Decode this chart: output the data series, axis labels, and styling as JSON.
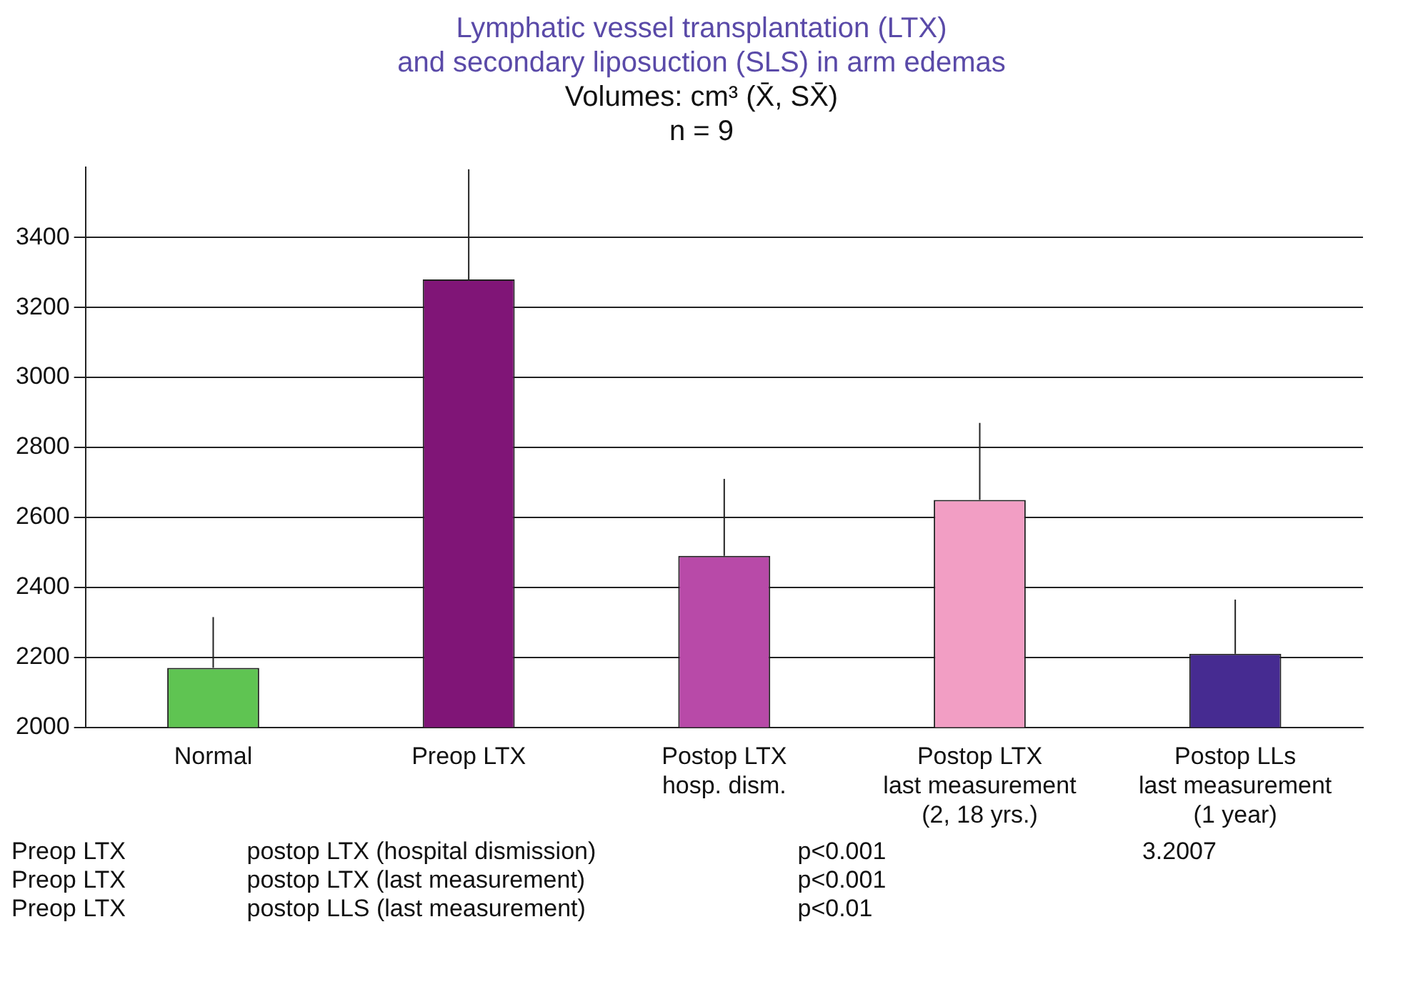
{
  "chart_data": {
    "type": "bar",
    "title": "Lymphatic vessel transplantation (LTX)\nand secondary liposuction (SLS) in arm edemas",
    "subtitle": "Volumes: cm³ (X̄, SX̄)\nn = 9",
    "categories": [
      "Normal",
      "Preop LTX",
      "Postop LTX\nhosp. dism.",
      "Postop LTX\nlast measurement\n(2, 18 yrs.)",
      "Postop LLs\nlast measurement\n(1 year)"
    ],
    "values": [
      2170,
      3280,
      2490,
      2650,
      2210
    ],
    "colors": [
      "#5fc452",
      "#801577",
      "#b84aa8",
      "#f29ec4",
      "#462b91"
    ],
    "errors": [
      [
        2170,
        2315
      ],
      [
        3280,
        3595
      ],
      [
        2490,
        2710
      ],
      [
        2650,
        2870
      ],
      [
        2210,
        2365
      ]
    ],
    "ylim": [
      2000,
      3600
    ],
    "yticks": [
      2000,
      2200,
      2400,
      2600,
      2800,
      3000,
      3200,
      3400
    ],
    "grid": "y",
    "legend": false,
    "annotations": [
      "Preop LTX\tpostop LTX (hospital dismission)\tp<0.001\t3.2007",
      "Preop LTX\tpostop LTX (last measurement)\tp<0.001",
      "Preop LTX\tpostop LLS (last measurement)\tp<0.01"
    ]
  }
}
